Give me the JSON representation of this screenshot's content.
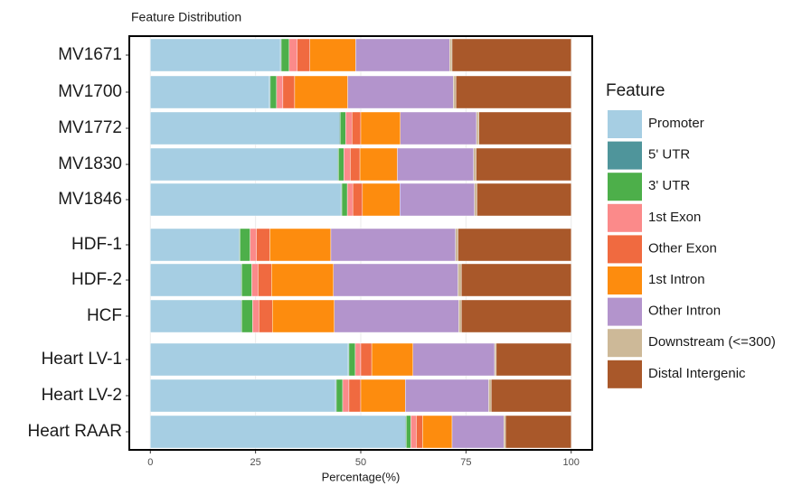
{
  "chart_data": {
    "type": "bar",
    "orientation": "horizontal",
    "stacked": true,
    "title": "Feature Distribution",
    "x_label": "Percentage(%)",
    "legend_title": "Feature",
    "legend_position": "right",
    "grid": true,
    "categories": [
      "MV1671",
      "MV1700",
      "MV1772",
      "MV1830",
      "MV1846",
      "HDF-1",
      "HDF-2",
      "HCF",
      "Heart LV-1",
      "Heart LV-2",
      "Heart RAAR"
    ],
    "xlim": [
      -5,
      105
    ],
    "xticks": [
      0,
      25,
      50,
      75,
      100
    ],
    "series": [
      {
        "name": "Promoter",
        "color": "#a6cee3",
        "values": [
          30.9,
          28.3,
          44.9,
          44.5,
          45.3,
          21.1,
          21.5,
          21.5,
          47.0,
          44.0,
          60.6
        ]
      },
      {
        "name": "5' UTR",
        "color": "#4f959b",
        "values": [
          0.2,
          0.2,
          0.2,
          0.2,
          0.2,
          0.2,
          0.2,
          0.2,
          0.2,
          0.2,
          0.2
        ]
      },
      {
        "name": "3' UTR",
        "color": "#4daf4a",
        "values": [
          1.9,
          1.5,
          1.3,
          1.3,
          1.3,
          2.4,
          2.4,
          2.6,
          1.5,
          1.5,
          1.1
        ]
      },
      {
        "name": "1st Exon",
        "color": "#fb8a8a",
        "values": [
          1.9,
          1.5,
          1.5,
          1.5,
          1.3,
          1.5,
          1.5,
          1.5,
          1.3,
          1.5,
          1.3
        ]
      },
      {
        "name": "Other Exon",
        "color": "#f06a40",
        "values": [
          3.0,
          2.8,
          2.1,
          2.3,
          2.3,
          3.2,
          3.2,
          3.2,
          2.6,
          2.8,
          1.5
        ]
      },
      {
        "name": "1st Intron",
        "color": "#fd8c0e",
        "values": [
          10.9,
          12.6,
          9.4,
          8.9,
          8.9,
          14.5,
          14.7,
          14.7,
          9.8,
          10.6,
          7.0
        ]
      },
      {
        "name": "Other Intron",
        "color": "#b394cc",
        "values": [
          22.3,
          25.1,
          18.1,
          18.1,
          17.7,
          29.6,
          29.6,
          29.6,
          19.4,
          19.8,
          12.3
        ]
      },
      {
        "name": "Downstream (<=300)",
        "color": "#cdb998",
        "values": [
          0.6,
          0.6,
          0.6,
          0.6,
          0.6,
          0.6,
          0.8,
          0.6,
          0.4,
          0.6,
          0.4
        ]
      },
      {
        "name": "Distal Intergenic",
        "color": "#a9582a",
        "values": [
          28.3,
          27.4,
          21.9,
          22.6,
          22.4,
          26.9,
          26.1,
          26.1,
          17.8,
          19.0,
          15.6
        ]
      }
    ]
  }
}
